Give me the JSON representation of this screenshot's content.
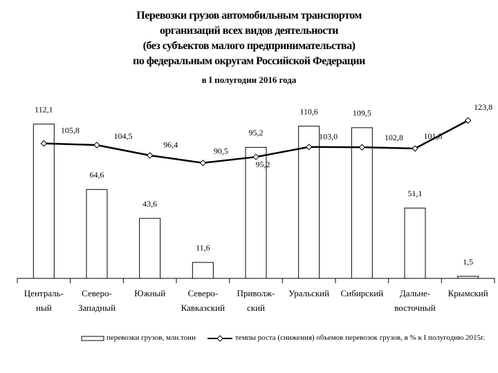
{
  "chart_data": {
    "type": "combo",
    "title": "Перевозки грузов автомобильным транспортом\nорганизаций всех видов деятельности\n(без субъектов малого предпринимательства)\nпо федеральным округам Российской Федерации",
    "subtitle": "в I полугодии 2016 года",
    "categories": [
      "Централь-\nный",
      "Северо-\nЗападный",
      "Южный",
      "Северо-\nКавказский",
      "Приволж-\nский",
      "Уральский",
      "Сибирский",
      "Дальне-\nвосточный",
      "Крымский"
    ],
    "series": [
      {
        "name": "перевозки грузов, млн.тонн",
        "type": "bar",
        "color": "#ffffff",
        "values": [
          112.1,
          64.6,
          43.6,
          11.6,
          95.2,
          110.6,
          109.5,
          51.1,
          1.5
        ],
        "value_labels": [
          "112,1",
          "64,6",
          "43,6",
          "11,6",
          "95,2",
          "110,6",
          "109,5",
          "51,1",
          "1,5"
        ]
      },
      {
        "name": "темпы роста (снижения) объемов перевозок грузов, в % к I полугодию 2015г.",
        "type": "line",
        "axis": "y2",
        "color": "#000000",
        "values": [
          105.8,
          104.5,
          96.4,
          90.5,
          95.2,
          103.0,
          102.8,
          101.8,
          123.8
        ],
        "value_labels": [
          "105,8",
          "104,5",
          "96,4",
          "90,5",
          "95,2",
          "103,0",
          "102,8",
          "101,8",
          "123,8"
        ]
      }
    ],
    "ylim": [
      0,
      127
    ],
    "y2lim": [
      0,
      137
    ]
  }
}
